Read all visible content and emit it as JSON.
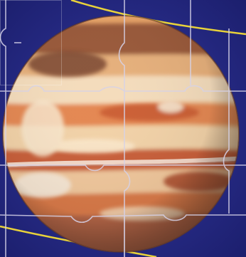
{
  "puzzle": {
    "subject": "jupiter-planet-image",
    "grid": {
      "rows": 3,
      "cols": 4
    },
    "pieces_visible": 12,
    "colors": {
      "space": "#262b8c",
      "space_dark": "#1c1f6e",
      "orbit_line": "#e8d23a",
      "piece_seam": "#d6d2e8",
      "planet_base": "#e8a468",
      "band_light": "#f6e3c4",
      "band_orange": "#e07a45",
      "band_dark": "#b4542c",
      "band_brown": "#8a4a2e"
    }
  }
}
